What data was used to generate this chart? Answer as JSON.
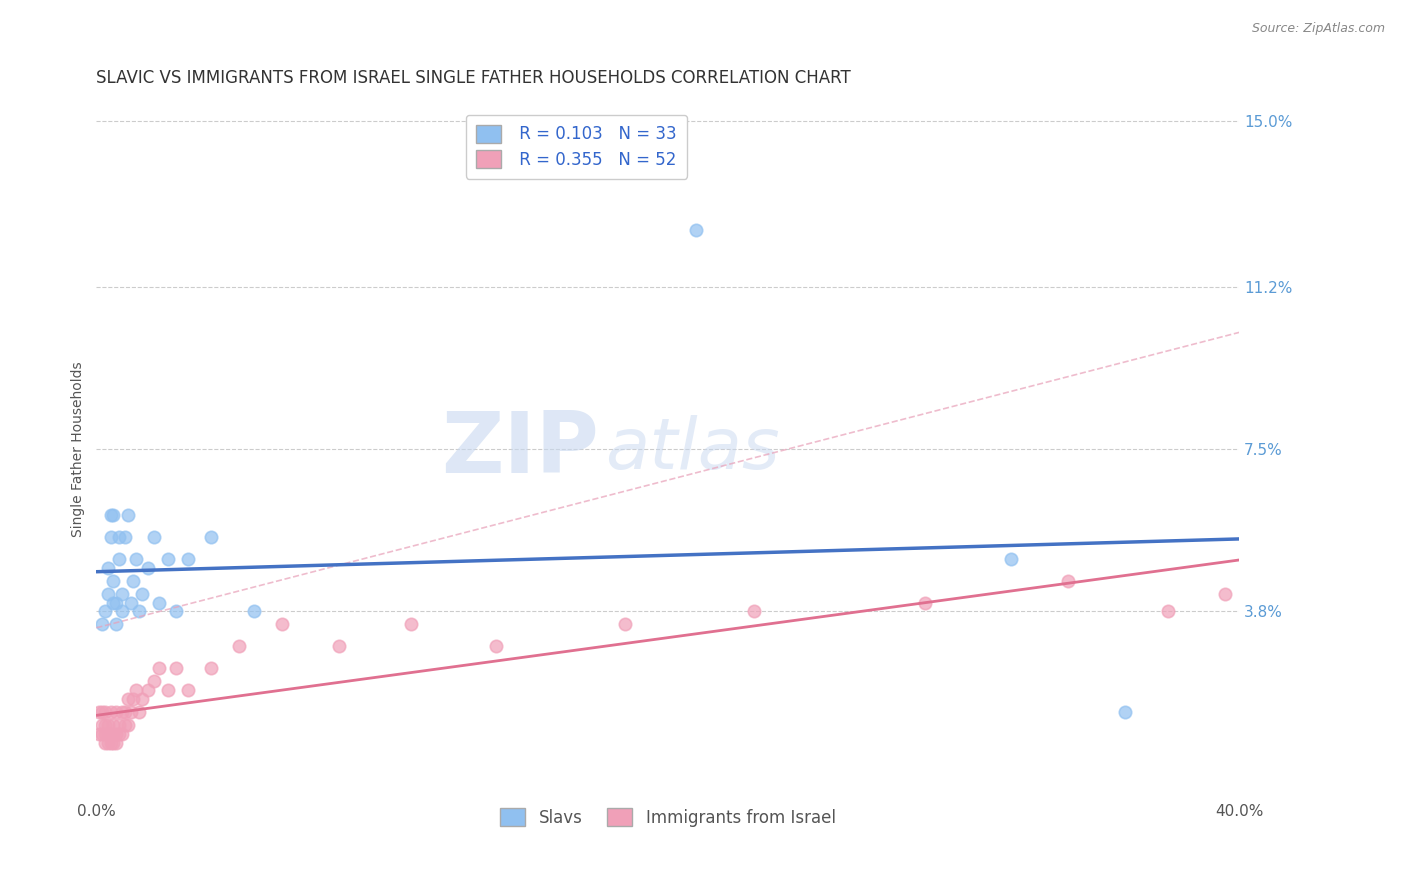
{
  "title": "SLAVIC VS IMMIGRANTS FROM ISRAEL SINGLE FATHER HOUSEHOLDS CORRELATION CHART",
  "source": "Source: ZipAtlas.com",
  "ylabel": "Single Father Households",
  "xlim": [
    0.0,
    0.4
  ],
  "ylim": [
    -0.005,
    0.155
  ],
  "yticks": [
    0.038,
    0.075,
    0.112,
    0.15
  ],
  "ytick_labels": [
    "3.8%",
    "7.5%",
    "11.2%",
    "15.0%"
  ],
  "xticks": [
    0.0,
    0.4
  ],
  "xtick_labels": [
    "0.0%",
    "40.0%"
  ],
  "background_color": "#ffffff",
  "watermark_zip": "ZIP",
  "watermark_atlas": "atlas",
  "legend_R1": "R = 0.103",
  "legend_N1": "N = 33",
  "legend_R2": "R = 0.355",
  "legend_N2": "N = 52",
  "color_slavs": "#90C0F0",
  "color_israel": "#F0A0B8",
  "color_slavs_line": "#4472C4",
  "color_israel_line": "#E07090",
  "color_israel_dash": "#E8A0B8",
  "title_fontsize": 12,
  "axis_label_fontsize": 10,
  "tick_fontsize": 11,
  "legend_fontsize": 12,
  "slavs_x": [
    0.002,
    0.003,
    0.004,
    0.004,
    0.005,
    0.005,
    0.006,
    0.006,
    0.006,
    0.007,
    0.007,
    0.008,
    0.008,
    0.009,
    0.009,
    0.01,
    0.011,
    0.012,
    0.013,
    0.014,
    0.015,
    0.016,
    0.018,
    0.02,
    0.022,
    0.025,
    0.028,
    0.032,
    0.04,
    0.055,
    0.21,
    0.32,
    0.36
  ],
  "slavs_y": [
    0.035,
    0.038,
    0.042,
    0.048,
    0.055,
    0.06,
    0.04,
    0.045,
    0.06,
    0.035,
    0.04,
    0.05,
    0.055,
    0.038,
    0.042,
    0.055,
    0.06,
    0.04,
    0.045,
    0.05,
    0.038,
    0.042,
    0.048,
    0.055,
    0.04,
    0.05,
    0.038,
    0.05,
    0.055,
    0.038,
    0.125,
    0.05,
    0.015
  ],
  "israel_x": [
    0.001,
    0.001,
    0.002,
    0.002,
    0.002,
    0.003,
    0.003,
    0.003,
    0.003,
    0.004,
    0.004,
    0.004,
    0.005,
    0.005,
    0.005,
    0.006,
    0.006,
    0.006,
    0.007,
    0.007,
    0.007,
    0.008,
    0.008,
    0.009,
    0.009,
    0.01,
    0.01,
    0.011,
    0.011,
    0.012,
    0.013,
    0.014,
    0.015,
    0.016,
    0.018,
    0.02,
    0.022,
    0.025,
    0.028,
    0.032,
    0.04,
    0.05,
    0.065,
    0.085,
    0.11,
    0.14,
    0.185,
    0.23,
    0.29,
    0.34,
    0.375,
    0.395
  ],
  "israel_y": [
    0.01,
    0.015,
    0.01,
    0.012,
    0.015,
    0.008,
    0.01,
    0.012,
    0.015,
    0.008,
    0.01,
    0.012,
    0.008,
    0.01,
    0.015,
    0.008,
    0.01,
    0.012,
    0.008,
    0.01,
    0.015,
    0.01,
    0.012,
    0.01,
    0.015,
    0.012,
    0.015,
    0.012,
    0.018,
    0.015,
    0.018,
    0.02,
    0.015,
    0.018,
    0.02,
    0.022,
    0.025,
    0.02,
    0.025,
    0.02,
    0.025,
    0.03,
    0.035,
    0.03,
    0.035,
    0.03,
    0.035,
    0.038,
    0.04,
    0.045,
    0.038,
    0.042
  ]
}
